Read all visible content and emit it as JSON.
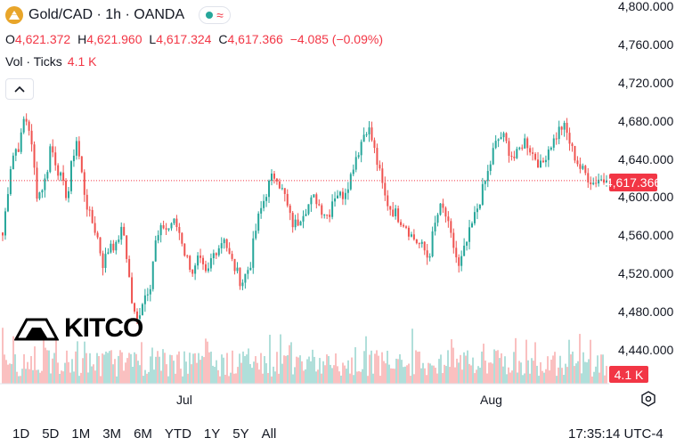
{
  "header": {
    "symbol_title": "Gold/CAD · 1h · OANDA"
  },
  "ohlc": {
    "o_label": "O",
    "o_value": "4,621.372",
    "h_label": "H",
    "h_value": "4,621.960",
    "l_label": "L",
    "l_value": "4,617.324",
    "c_label": "C",
    "c_value": "4,617.366",
    "change": "−4.085 (−0.09%)"
  },
  "volume": {
    "label": "Vol · Ticks",
    "value": "4.1 K"
  },
  "watermark": "KITCO",
  "price_tag": "4,617.366",
  "volume_tag": "4.1 K",
  "timeframes": [
    "1D",
    "5D",
    "1M",
    "3M",
    "6M",
    "YTD",
    "1Y",
    "5Y",
    "All"
  ],
  "clock": "17:35:14 UTC-4",
  "colors": {
    "up": "#26a69a",
    "down": "#ef5350",
    "accent_red": "#f23645"
  },
  "icons": {
    "settings": "gear-icon",
    "collapse": "chevron-up-icon",
    "logo": "gold-coin-icon"
  },
  "chart_data": {
    "type": "candlestick",
    "title": "Gold/CAD · 1h · OANDA",
    "xlabel": "",
    "ylabel": "",
    "y_ticks": [
      "4,800.000",
      "4,760.000",
      "4,720.000",
      "4,680.000",
      "4,640.000",
      "4,600.000",
      "4,560.000",
      "4,520.000",
      "4,480.000",
      "4,440.000"
    ],
    "x_ticks": [
      "Jul",
      "Aug"
    ],
    "ylim": [
      4432,
      4806
    ],
    "last_price": 4617.366,
    "grid": false,
    "approx_close_path": [
      4560,
      4600,
      4640,
      4650,
      4655,
      4685,
      4675,
      4640,
      4600,
      4610,
      4620,
      4655,
      4640,
      4625,
      4610,
      4600,
      4640,
      4660,
      4630,
      4600,
      4580,
      4570,
      4555,
      4530,
      4540,
      4555,
      4545,
      4565,
      4560,
      4520,
      4480,
      4470,
      4490,
      4500,
      4510,
      4550,
      4560,
      4570,
      4565,
      4575,
      4570,
      4560,
      4540,
      4530,
      4520,
      4535,
      4525,
      4515,
      4535,
      4545,
      4550,
      4560,
      4540,
      4530,
      4520,
      4510,
      4520,
      4530,
      4560,
      4580,
      4595,
      4610,
      4620,
      4625,
      4610,
      4600,
      4580,
      4570,
      4575,
      4585,
      4590,
      4595,
      4600,
      4590,
      4585,
      4580,
      4600,
      4605,
      4600,
      4610,
      4620,
      4640,
      4650,
      4665,
      4675,
      4660,
      4640,
      4620,
      4600,
      4590,
      4585,
      4580,
      4575,
      4570,
      4560,
      4555,
      4550,
      4545,
      4535,
      4560,
      4580,
      4590,
      4580,
      4560,
      4545,
      4525,
      4540,
      4555,
      4570,
      4585,
      4600,
      4615,
      4630,
      4650,
      4660,
      4665,
      4655,
      4645,
      4640,
      4650,
      4660,
      4655,
      4645,
      4640,
      4630,
      4645,
      4655,
      4660,
      4670,
      4675,
      4665,
      4650,
      4640,
      4630,
      4625,
      4620,
      4615,
      4620,
      4618,
      4617
    ],
    "volume_ticks_note": "volume bars in ticks, latest 4.1 K"
  }
}
